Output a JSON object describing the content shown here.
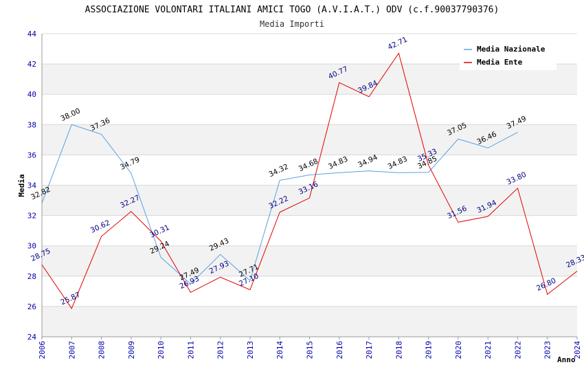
{
  "colors": {
    "nazionale": "#5aa0e0",
    "ente": "#e00000",
    "band": "#f2f2f2",
    "grid": "#d8d8d8",
    "axis": "#999999",
    "tick_text": "#0000aa"
  },
  "chart_data": {
    "type": "line",
    "title": "ASSOCIAZIONE VOLONTARI ITALIANI AMICI TOGO (A.V.I.A.T.) ODV (c.f.90037790376)",
    "subtitle": "Media Importi",
    "xlabel": "Anno",
    "ylabel": "Media",
    "ylim": [
      24,
      44
    ],
    "yticks": [
      "24",
      "26",
      "28",
      "30",
      "32",
      "34",
      "36",
      "38",
      "40",
      "42",
      "44"
    ],
    "x": [
      "2006",
      "2007",
      "2008",
      "2009",
      "2010",
      "2011",
      "2012",
      "2013",
      "2014",
      "2015",
      "2016",
      "2017",
      "2018",
      "2019",
      "2020",
      "2021",
      "2022",
      "2023",
      "2024"
    ],
    "legend": [
      "Media Nazionale",
      "Media Ente"
    ],
    "legend_position": "top-right",
    "series": [
      {
        "name": "Media Nazionale",
        "key": "nazionale",
        "values": [
          32.82,
          38.0,
          37.36,
          34.79,
          29.24,
          27.49,
          29.43,
          27.71,
          34.32,
          34.68,
          34.83,
          34.94,
          34.83,
          34.85,
          37.05,
          36.46,
          37.49,
          null,
          null
        ],
        "labels": [
          "32.82",
          "38.00",
          "37.36",
          "34.79",
          "29.24",
          "27.49",
          "29.43",
          "27.71",
          "34.32",
          "34.68",
          "34.83",
          "34.94",
          "34.83",
          "34.85",
          "37.05",
          "36.46",
          "37.49",
          null,
          null
        ]
      },
      {
        "name": "Media Ente",
        "key": "ente",
        "values": [
          28.75,
          25.87,
          30.62,
          32.27,
          30.31,
          26.93,
          27.93,
          27.1,
          32.22,
          33.16,
          40.77,
          39.84,
          42.71,
          35.33,
          31.56,
          31.94,
          33.8,
          26.8,
          28.33
        ],
        "labels": [
          "28.75",
          "25.87",
          "30.62",
          "32.27",
          "30.31",
          "26.93",
          "27.93",
          "27.10",
          "32.22",
          "33.16",
          "40.77",
          "39.84",
          "42.71",
          "35.33",
          "31.56",
          "31.94",
          "33.80",
          "26.80",
          "28.33"
        ]
      }
    ]
  }
}
